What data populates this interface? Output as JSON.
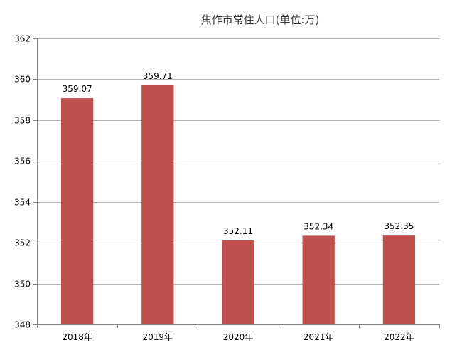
{
  "chart_data": {
    "type": "bar",
    "title": "焦作市常住人口(单位:万)",
    "categories": [
      "2018年",
      "2019年",
      "2020年",
      "2021年",
      "2022年"
    ],
    "values": [
      359.07,
      359.71,
      352.11,
      352.34,
      352.35
    ],
    "data_labels": [
      "359.07",
      "359.71",
      "352.11",
      "352.34",
      "352.35"
    ],
    "xlabel": "",
    "ylabel": "",
    "ylim": [
      348,
      362
    ],
    "yticks": [
      348,
      350,
      352,
      354,
      356,
      358,
      360,
      362
    ],
    "grid": true,
    "legend": "none",
    "bar_color": "#c0504d",
    "grid_color": "#b3b3b3"
  }
}
